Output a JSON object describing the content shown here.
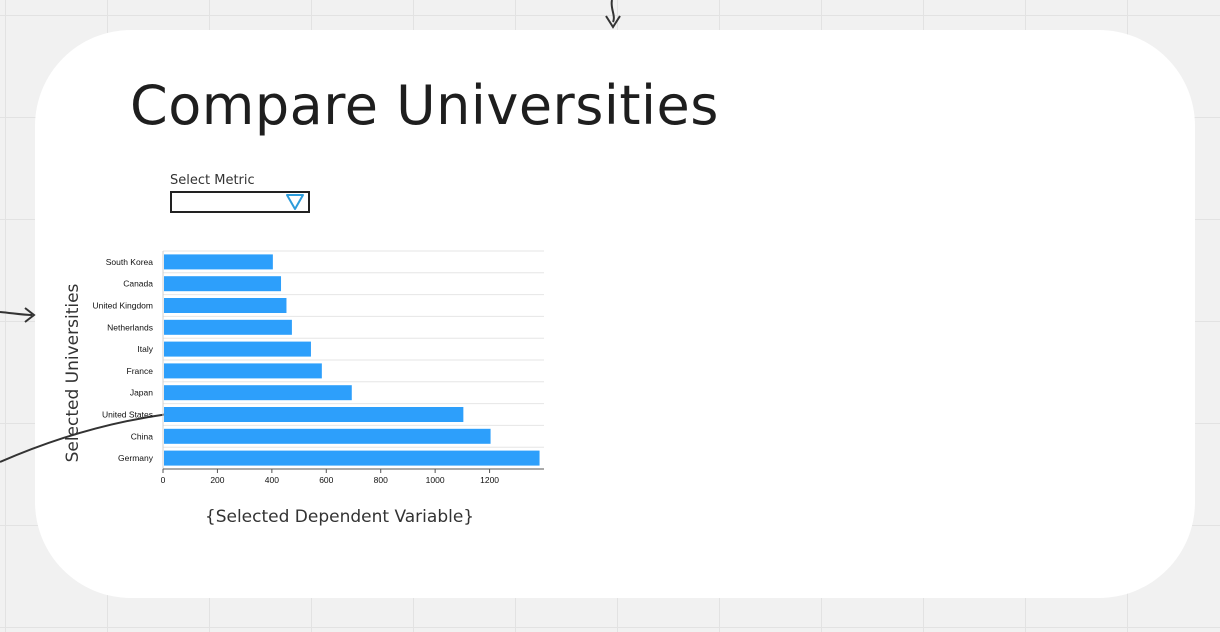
{
  "page": {
    "title": "Compare Universities"
  },
  "metric_select": {
    "label": "Select Metric",
    "value": "",
    "icon": "chevron-down-icon",
    "accent_color": "#2d9cdb"
  },
  "chart_data": {
    "type": "bar",
    "orientation": "horizontal",
    "categories": [
      "South Korea",
      "Canada",
      "United Kingdom",
      "Netherlands",
      "Italy",
      "France",
      "Japan",
      "United States",
      "China",
      "Germany"
    ],
    "values": [
      400,
      430,
      450,
      470,
      540,
      580,
      690,
      1100,
      1200,
      1380
    ],
    "xticks": [
      0,
      200,
      400,
      600,
      800,
      1000,
      1200
    ],
    "xlim": [
      0,
      1400
    ],
    "xlabel": "{Selected Dependent Variable}",
    "ylabel": "Selected Universities",
    "grid": true,
    "bar_color": "#2d9ffb"
  }
}
